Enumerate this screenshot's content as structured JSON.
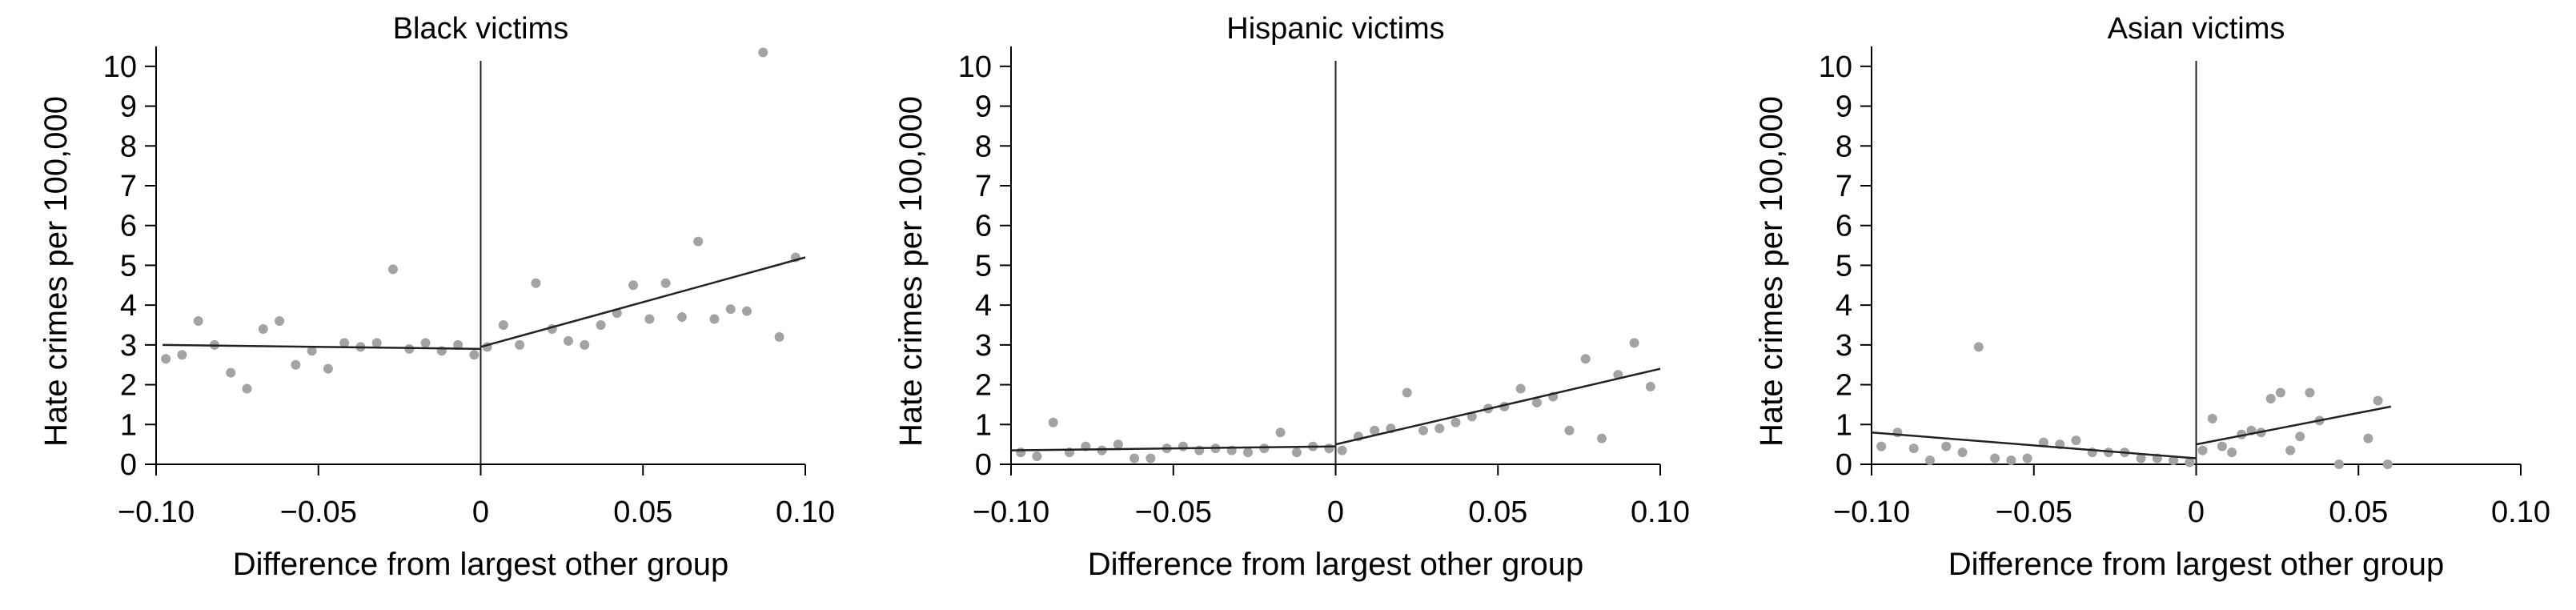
{
  "chart_data": [
    {
      "type": "scatter",
      "title": "Black victims",
      "xlabel": "Difference from largest other group",
      "ylabel": "Hate crimes per 100,000",
      "xlim": [
        -0.1,
        0.1
      ],
      "ylim": [
        0,
        10.5
      ],
      "xticks": [
        -0.1,
        -0.05,
        0,
        0.05,
        0.1
      ],
      "xtick_labels": [
        "−0.10",
        "−0.05",
        "0",
        "0.05",
        "0.10"
      ],
      "yticks": [
        0,
        1,
        2,
        3,
        4,
        5,
        6,
        7,
        8,
        9,
        10
      ],
      "ytick_labels": [
        "0",
        "1",
        "2",
        "3",
        "4",
        "5",
        "6",
        "7",
        "8",
        "9",
        "10"
      ],
      "grid": false,
      "cutoff_x": 0,
      "points": [
        [
          -0.097,
          2.65
        ],
        [
          -0.092,
          2.75
        ],
        [
          -0.087,
          3.6
        ],
        [
          -0.082,
          3.0
        ],
        [
          -0.077,
          2.3
        ],
        [
          -0.072,
          1.9
        ],
        [
          -0.067,
          3.4
        ],
        [
          -0.062,
          3.6
        ],
        [
          -0.057,
          2.5
        ],
        [
          -0.052,
          2.85
        ],
        [
          -0.047,
          2.4
        ],
        [
          -0.042,
          3.05
        ],
        [
          -0.037,
          2.95
        ],
        [
          -0.032,
          3.05
        ],
        [
          -0.027,
          4.9
        ],
        [
          -0.022,
          2.9
        ],
        [
          -0.017,
          3.05
        ],
        [
          -0.012,
          2.85
        ],
        [
          -0.007,
          3.0
        ],
        [
          -0.002,
          2.75
        ],
        [
          0.002,
          2.95
        ],
        [
          0.007,
          3.5
        ],
        [
          0.012,
          3.0
        ],
        [
          0.017,
          4.55
        ],
        [
          0.022,
          3.4
        ],
        [
          0.027,
          3.1
        ],
        [
          0.032,
          3.0
        ],
        [
          0.037,
          3.5
        ],
        [
          0.042,
          3.8
        ],
        [
          0.047,
          4.5
        ],
        [
          0.052,
          3.65
        ],
        [
          0.057,
          4.55
        ],
        [
          0.062,
          3.7
        ],
        [
          0.067,
          5.6
        ],
        [
          0.072,
          3.65
        ],
        [
          0.077,
          3.9
        ],
        [
          0.082,
          3.85
        ],
        [
          0.087,
          10.35
        ],
        [
          0.092,
          3.2
        ],
        [
          0.097,
          5.2
        ]
      ],
      "fit_lines": [
        {
          "x": [
            -0.098,
            0
          ],
          "y": [
            3.0,
            2.9
          ]
        },
        {
          "x": [
            0,
            0.1
          ],
          "y": [
            2.95,
            5.2
          ]
        }
      ]
    },
    {
      "type": "scatter",
      "title": "Hispanic victims",
      "xlabel": "Difference from largest other group",
      "ylabel": "Hate crimes per 100,000",
      "xlim": [
        -0.1,
        0.1
      ],
      "ylim": [
        0,
        10.5
      ],
      "xticks": [
        -0.1,
        -0.05,
        0,
        0.05,
        0.1
      ],
      "xtick_labels": [
        "−0.10",
        "−0.05",
        "0",
        "0.05",
        "0.10"
      ],
      "yticks": [
        0,
        1,
        2,
        3,
        4,
        5,
        6,
        7,
        8,
        9,
        10
      ],
      "ytick_labels": [
        "0",
        "1",
        "2",
        "3",
        "4",
        "5",
        "6",
        "7",
        "8",
        "9",
        "10"
      ],
      "grid": false,
      "cutoff_x": 0,
      "points": [
        [
          -0.097,
          0.3
        ],
        [
          -0.092,
          0.2
        ],
        [
          -0.087,
          1.05
        ],
        [
          -0.082,
          0.3
        ],
        [
          -0.077,
          0.45
        ],
        [
          -0.072,
          0.35
        ],
        [
          -0.067,
          0.5
        ],
        [
          -0.062,
          0.15
        ],
        [
          -0.057,
          0.15
        ],
        [
          -0.052,
          0.4
        ],
        [
          -0.047,
          0.45
        ],
        [
          -0.042,
          0.35
        ],
        [
          -0.037,
          0.4
        ],
        [
          -0.032,
          0.35
        ],
        [
          -0.027,
          0.3
        ],
        [
          -0.022,
          0.4
        ],
        [
          -0.017,
          0.8
        ],
        [
          -0.012,
          0.3
        ],
        [
          -0.007,
          0.45
        ],
        [
          -0.002,
          0.4
        ],
        [
          0.002,
          0.35
        ],
        [
          0.007,
          0.7
        ],
        [
          0.012,
          0.85
        ],
        [
          0.017,
          0.9
        ],
        [
          0.022,
          1.8
        ],
        [
          0.027,
          0.85
        ],
        [
          0.032,
          0.9
        ],
        [
          0.037,
          1.05
        ],
        [
          0.042,
          1.2
        ],
        [
          0.047,
          1.4
        ],
        [
          0.052,
          1.45
        ],
        [
          0.057,
          1.9
        ],
        [
          0.062,
          1.55
        ],
        [
          0.067,
          1.7
        ],
        [
          0.072,
          0.85
        ],
        [
          0.077,
          2.65
        ],
        [
          0.082,
          0.65
        ],
        [
          0.087,
          2.25
        ],
        [
          0.092,
          3.05
        ],
        [
          0.097,
          1.95
        ]
      ],
      "fit_lines": [
        {
          "x": [
            -0.1,
            0
          ],
          "y": [
            0.35,
            0.45
          ]
        },
        {
          "x": [
            0,
            0.1
          ],
          "y": [
            0.5,
            2.4
          ]
        }
      ]
    },
    {
      "type": "scatter",
      "title": "Asian victims",
      "xlabel": "Difference from largest other group",
      "ylabel": "Hate crimes per 100,000",
      "xlim": [
        -0.1,
        0.1
      ],
      "ylim": [
        0,
        10.5
      ],
      "xticks": [
        -0.1,
        -0.05,
        0,
        0.05,
        0.1
      ],
      "xtick_labels": [
        "−0.10",
        "−0.05",
        "0",
        "0.05",
        "0.10"
      ],
      "yticks": [
        0,
        1,
        2,
        3,
        4,
        5,
        6,
        7,
        8,
        9,
        10
      ],
      "ytick_labels": [
        "0",
        "1",
        "2",
        "3",
        "4",
        "5",
        "6",
        "7",
        "8",
        "9",
        "10"
      ],
      "grid": false,
      "cutoff_x": 0,
      "points": [
        [
          -0.097,
          0.45
        ],
        [
          -0.092,
          0.8
        ],
        [
          -0.087,
          0.4
        ],
        [
          -0.082,
          0.1
        ],
        [
          -0.077,
          0.45
        ],
        [
          -0.072,
          0.3
        ],
        [
          -0.067,
          2.95
        ],
        [
          -0.062,
          0.15
        ],
        [
          -0.057,
          0.1
        ],
        [
          -0.052,
          0.15
        ],
        [
          -0.047,
          0.55
        ],
        [
          -0.042,
          0.5
        ],
        [
          -0.037,
          0.6
        ],
        [
          -0.032,
          0.3
        ],
        [
          -0.027,
          0.3
        ],
        [
          -0.022,
          0.3
        ],
        [
          -0.017,
          0.15
        ],
        [
          -0.012,
          0.15
        ],
        [
          -0.007,
          0.1
        ],
        [
          -0.002,
          0.05
        ],
        [
          0.002,
          0.35
        ],
        [
          0.005,
          1.15
        ],
        [
          0.008,
          0.45
        ],
        [
          0.011,
          0.3
        ],
        [
          0.014,
          0.75
        ],
        [
          0.017,
          0.85
        ],
        [
          0.02,
          0.8
        ],
        [
          0.023,
          1.65
        ],
        [
          0.026,
          1.8
        ],
        [
          0.029,
          0.35
        ],
        [
          0.032,
          0.7
        ],
        [
          0.035,
          1.8
        ],
        [
          0.038,
          1.1
        ],
        [
          0.044,
          0.0
        ],
        [
          0.053,
          0.65
        ],
        [
          0.056,
          1.6
        ],
        [
          0.059,
          0.0
        ]
      ],
      "fit_lines": [
        {
          "x": [
            -0.1,
            0
          ],
          "y": [
            0.8,
            0.15
          ]
        },
        {
          "x": [
            0,
            0.06
          ],
          "y": [
            0.5,
            1.45
          ]
        }
      ]
    }
  ],
  "colors": {
    "points": "#a3a3a3",
    "lines": "#222222",
    "axes": "#000000",
    "text": "#000000"
  }
}
